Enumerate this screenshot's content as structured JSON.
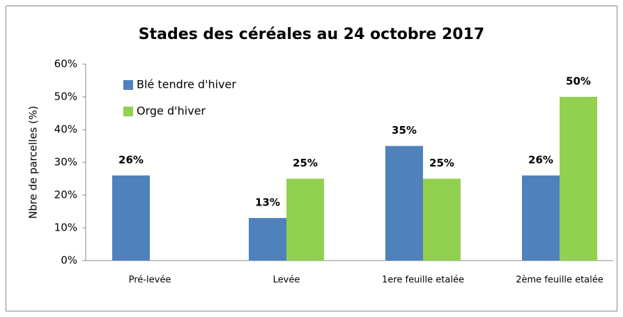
{
  "chart_data": {
    "type": "bar",
    "title": "Stades des céréales au 24 octobre 2017",
    "y_label": "Nbre de parcelles (%)",
    "categories": [
      "Pré-levée",
      "Levée",
      "1ere feuille etalée",
      "2ème feuille etalée"
    ],
    "series": [
      {
        "name": "Blé tendre d'hiver",
        "color": "#4f81bd",
        "values": [
          26,
          13,
          35,
          26
        ],
        "value_labels": [
          "26%",
          "13%",
          "35%",
          "26%"
        ]
      },
      {
        "name": "Orge d'hiver",
        "color": "#92d050",
        "values": [
          null,
          25,
          25,
          50
        ],
        "value_labels": [
          null,
          "25%",
          "25%",
          "50%"
        ]
      }
    ],
    "ylim": [
      0,
      60
    ],
    "yticks": [
      {
        "value": 0,
        "label": "0%"
      },
      {
        "value": 10,
        "label": "10%"
      },
      {
        "value": 20,
        "label": "20%"
      },
      {
        "value": 30,
        "label": "30%"
      },
      {
        "value": 40,
        "label": "40%"
      },
      {
        "value": 50,
        "label": "50%"
      },
      {
        "value": 60,
        "label": "60%"
      }
    ],
    "legend": "top-left"
  }
}
